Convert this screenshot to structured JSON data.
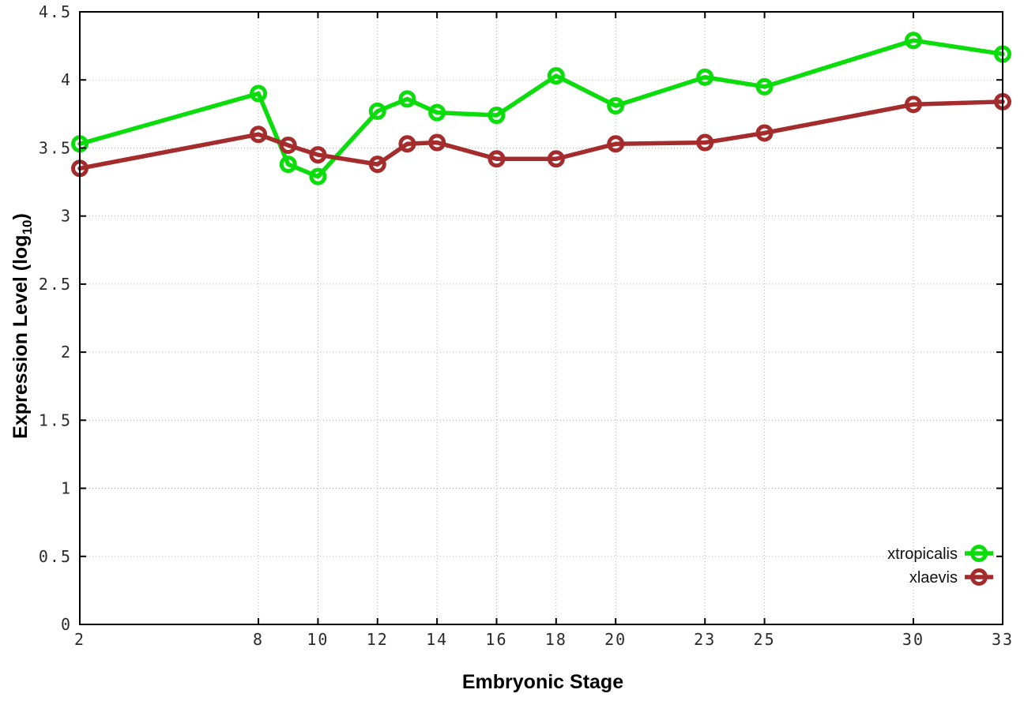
{
  "chart_data": {
    "type": "line",
    "title": "",
    "xlabel": "Embryonic Stage",
    "ylabel": "Expression Level (log10)",
    "ylabel_parts": {
      "pre": "Expression Level (log",
      "sub": "10",
      "post": ")"
    },
    "xlim": [
      2,
      33
    ],
    "ylim": [
      0,
      4.5
    ],
    "grid": true,
    "legend_position": "inside bottom right",
    "x": [
      2,
      8,
      9,
      10,
      12,
      13,
      14,
      16,
      18,
      20,
      23,
      25,
      30,
      33
    ],
    "xticks": [
      2,
      8,
      10,
      12,
      14,
      16,
      18,
      20,
      23,
      25,
      30,
      33
    ],
    "xtick_labels": [
      "2",
      "8",
      "10",
      "12",
      "14",
      "16",
      "18",
      "20",
      "23",
      "25",
      "30",
      "33"
    ],
    "yticks": [
      0,
      0.5,
      1,
      1.5,
      2,
      2.5,
      3,
      3.5,
      4,
      4.5
    ],
    "ytick_labels": [
      "0",
      "0.5",
      "1",
      "1.5",
      "2",
      "2.5",
      "3",
      "3.5",
      "4",
      "4.5"
    ],
    "marker": "open-circle",
    "series": [
      {
        "name": "xtropicalis",
        "color": "#0bdc0b",
        "values": [
          3.53,
          3.9,
          3.38,
          3.29,
          3.77,
          3.86,
          3.76,
          3.74,
          4.03,
          3.81,
          4.02,
          3.95,
          4.29,
          4.19
        ]
      },
      {
        "name": "xlaevis",
        "color": "#a52c2c",
        "values": [
          3.35,
          3.6,
          3.52,
          3.45,
          3.38,
          3.53,
          3.54,
          3.42,
          3.42,
          3.53,
          3.54,
          3.61,
          3.82,
          3.84
        ]
      }
    ]
  }
}
